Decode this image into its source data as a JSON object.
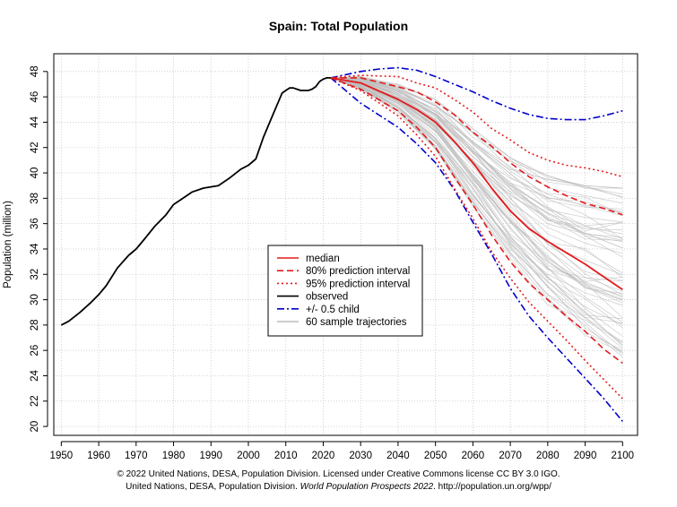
{
  "chart_data": {
    "type": "line",
    "title": "Spain: Total Population",
    "ylabel": "Population (million)",
    "xlabel": "",
    "xlim": [
      1948,
      2104
    ],
    "ylim": [
      19.3,
      49.4
    ],
    "x_ticks": [
      1950,
      1960,
      1970,
      1980,
      1990,
      2000,
      2010,
      2020,
      2030,
      2040,
      2050,
      2060,
      2070,
      2080,
      2090,
      2100
    ],
    "y_ticks": [
      20,
      22,
      24,
      26,
      28,
      30,
      32,
      34,
      36,
      38,
      40,
      42,
      44,
      46,
      48
    ],
    "grid": true,
    "legend_position": "center",
    "legend": [
      {
        "label": "median",
        "color": "#e31a1c",
        "dash": "none"
      },
      {
        "label": "80% prediction interval",
        "color": "#e31a1c",
        "dash": "dashed"
      },
      {
        "label": "95% prediction interval",
        "color": "#e31a1c",
        "dash": "dotted"
      },
      {
        "label": "observed",
        "color": "#000000",
        "dash": "none"
      },
      {
        "label": "+/- 0.5 child",
        "color": "#0000cc",
        "dash": "dashdot"
      },
      {
        "label": "60 sample trajectories",
        "color": "#bbbbbb",
        "dash": "none"
      }
    ],
    "series": [
      {
        "name": "observed",
        "color": "#000000",
        "dash": "none",
        "x": [
          1950,
          1952,
          1955,
          1958,
          1960,
          1962,
          1965,
          1968,
          1970,
          1972,
          1975,
          1978,
          1980,
          1982,
          1985,
          1988,
          1990,
          1992,
          1995,
          1998,
          2000,
          2002,
          2004,
          2006,
          2008,
          2009,
          2010,
          2011,
          2012,
          2013,
          2014,
          2015,
          2016,
          2017,
          2018,
          2019,
          2020,
          2021,
          2022
        ],
        "y": [
          28.0,
          28.3,
          29.0,
          29.8,
          30.4,
          31.1,
          32.5,
          33.5,
          34.0,
          34.7,
          35.8,
          36.7,
          37.5,
          37.9,
          38.5,
          38.8,
          38.9,
          39.0,
          39.6,
          40.3,
          40.6,
          41.1,
          42.8,
          44.2,
          45.6,
          46.3,
          46.5,
          46.7,
          46.7,
          46.6,
          46.5,
          46.5,
          46.5,
          46.6,
          46.8,
          47.2,
          47.4,
          47.5,
          47.5
        ]
      },
      {
        "name": "median",
        "color": "#e31a1c",
        "dash": "none",
        "x": [
          2022,
          2030,
          2040,
          2045,
          2050,
          2055,
          2060,
          2065,
          2070,
          2075,
          2080,
          2085,
          2090,
          2095,
          2100
        ],
        "y": [
          47.5,
          47.1,
          45.8,
          45.0,
          44.0,
          42.5,
          40.8,
          38.8,
          37.0,
          35.6,
          34.6,
          33.7,
          32.8,
          31.8,
          30.8
        ]
      },
      {
        "name": "80% prediction interval (upper)",
        "color": "#e31a1c",
        "dash": "dashed",
        "x": [
          2022,
          2030,
          2040,
          2045,
          2050,
          2055,
          2060,
          2065,
          2070,
          2075,
          2080,
          2085,
          2090,
          2095,
          2100
        ],
        "y": [
          47.5,
          47.5,
          46.8,
          46.4,
          45.6,
          44.6,
          43.2,
          42.1,
          40.8,
          39.7,
          38.9,
          38.2,
          37.6,
          37.2,
          36.7
        ]
      },
      {
        "name": "80% prediction interval (lower)",
        "color": "#e31a1c",
        "dash": "dashed",
        "x": [
          2022,
          2030,
          2040,
          2045,
          2050,
          2055,
          2060,
          2065,
          2070,
          2075,
          2080,
          2085,
          2090,
          2095,
          2100
        ],
        "y": [
          47.5,
          46.6,
          44.9,
          43.6,
          42.0,
          39.7,
          37.5,
          35.1,
          33.0,
          31.3,
          30.0,
          28.7,
          27.5,
          26.1,
          25.0
        ]
      },
      {
        "name": "95% prediction interval (upper)",
        "color": "#e31a1c",
        "dash": "dotted",
        "x": [
          2022,
          2030,
          2040,
          2045,
          2050,
          2055,
          2060,
          2065,
          2070,
          2075,
          2080,
          2085,
          2090,
          2095,
          2100
        ],
        "y": [
          47.5,
          47.7,
          47.6,
          47.1,
          46.7,
          45.8,
          44.8,
          43.5,
          42.6,
          41.6,
          41.0,
          40.6,
          40.4,
          40.1,
          39.7
        ]
      },
      {
        "name": "95% prediction interval (lower)",
        "color": "#e31a1c",
        "dash": "dotted",
        "x": [
          2022,
          2030,
          2040,
          2045,
          2050,
          2055,
          2060,
          2065,
          2070,
          2075,
          2080,
          2085,
          2090,
          2095,
          2100
        ],
        "y": [
          47.5,
          46.5,
          44.5,
          43.0,
          41.3,
          38.8,
          36.4,
          33.8,
          31.7,
          29.8,
          28.3,
          26.8,
          25.2,
          23.7,
          22.2
        ]
      },
      {
        "name": "+/- 0.5 child (upper)",
        "color": "#0000cc",
        "dash": "dashdot",
        "x": [
          2022,
          2030,
          2035,
          2040,
          2045,
          2050,
          2055,
          2060,
          2065,
          2070,
          2075,
          2080,
          2085,
          2090,
          2095,
          2100
        ],
        "y": [
          47.5,
          48.0,
          48.2,
          48.3,
          48.1,
          47.6,
          47.0,
          46.4,
          45.7,
          45.1,
          44.6,
          44.3,
          44.2,
          44.2,
          44.5,
          44.9
        ]
      },
      {
        "name": "+/- 0.5 child (lower)",
        "color": "#0000cc",
        "dash": "dashdot",
        "x": [
          2022,
          2030,
          2040,
          2045,
          2050,
          2055,
          2060,
          2065,
          2070,
          2075,
          2080,
          2085,
          2090,
          2095,
          2100
        ],
        "y": [
          47.5,
          45.5,
          43.6,
          42.3,
          40.8,
          38.7,
          36.1,
          33.6,
          30.9,
          28.7,
          27.0,
          25.4,
          23.8,
          22.2,
          20.4
        ]
      }
    ],
    "sample_trajectories": {
      "count": 60,
      "color": "#bbbbbb",
      "x": [
        2022,
        2030,
        2040,
        2050,
        2060,
        2070,
        2080,
        2090,
        2100
      ],
      "y_min": [
        47.5,
        46.6,
        44.7,
        41.8,
        37.4,
        33.2,
        29.6,
        27.2,
        25.2
      ],
      "y_max": [
        47.5,
        47.6,
        47.0,
        45.8,
        43.5,
        41.2,
        39.8,
        39.0,
        38.8
      ]
    }
  },
  "credits": {
    "line1": "© 2022 United Nations, DESA, Population Division. Licensed under Creative Commons license CC BY 3.0 IGO.",
    "line2_prefix": "United Nations, DESA, Population Division. ",
    "line2_italic": "World Population Prospects 2022",
    "line2_suffix": ". http://population.un.org/wpp/"
  }
}
